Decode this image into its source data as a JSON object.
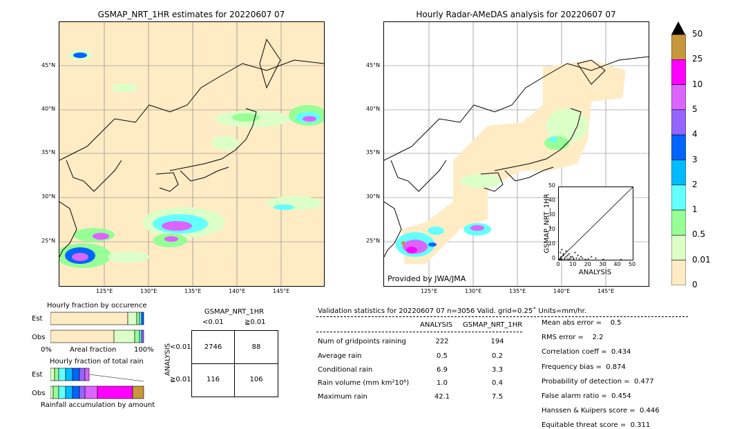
{
  "left_map": {
    "title": "GSMAP_NRT_1HR estimates for 20220607 07",
    "lat_labels": [
      "45°N",
      "40°N",
      "35°N",
      "30°N",
      "25°N"
    ],
    "lon_labels": [
      "125°E",
      "130°E",
      "135°E",
      "140°E",
      "145°E"
    ]
  },
  "right_map": {
    "title": "Hourly Radar-AMeDAS analysis for 20220607 07",
    "lat_labels": [
      "45°N",
      "40°N",
      "35°N",
      "30°N",
      "25°N"
    ],
    "lon_labels": [
      "125°E",
      "130°E",
      "135°E",
      "140°E",
      "145°E"
    ],
    "credit": "Provided by JWA/JMA"
  },
  "colorbar": {
    "labels": [
      "50",
      "25",
      "10",
      "5",
      "4",
      "3",
      "2",
      "1",
      "0.5",
      "0.01",
      "0"
    ],
    "colors": [
      "#c8963c",
      "#ff00ff",
      "#dc64ff",
      "#9664ff",
      "#0064ff",
      "#00bcff",
      "#64ffff",
      "#96ff96",
      "#dcffc8",
      "#ffebc4"
    ]
  },
  "chart_data": [
    {
      "type": "scatter",
      "title": "",
      "xlabel": "ANALYSIS",
      "ylabel": "GSMAP_NRT_1HR",
      "xlim": [
        0,
        50
      ],
      "ylim": [
        0,
        50
      ],
      "xticks": [
        "0",
        "10",
        "20",
        "30",
        "40",
        "50"
      ],
      "yticks": [
        "0",
        "10",
        "20",
        "30",
        "40",
        "50"
      ],
      "x": [
        0.5,
        1,
        1.5,
        2,
        3,
        4,
        5,
        6,
        7,
        8,
        9,
        10,
        12,
        14,
        15,
        18,
        20,
        25,
        30,
        42,
        1,
        2,
        3,
        5,
        6,
        8,
        10,
        1,
        2,
        4,
        7,
        11,
        13,
        16,
        22
      ],
      "y": [
        0.3,
        1,
        2,
        0.5,
        3,
        1,
        2,
        0.5,
        4,
        1,
        2,
        0.3,
        1,
        0.5,
        2,
        0.2,
        0.5,
        1,
        0.2,
        0.1,
        5,
        7,
        4,
        6,
        3,
        2,
        1,
        0.2,
        0.4,
        0.1,
        0.3,
        5,
        3,
        1,
        2
      ]
    },
    {
      "type": "bar",
      "title": "Hourly fraction by occurence",
      "categories": [
        "Est",
        "Obs"
      ],
      "xlabel": "Areal fraction",
      "xticks": [
        "0%",
        "100%"
      ]
    },
    {
      "type": "bar",
      "title": "Hourly fraction of total rain",
      "categories": [
        "Est",
        "Obs"
      ],
      "xlabel": "Rainfall accumulation by amount"
    }
  ],
  "contingency": {
    "title": "GSMAP_NRT_1HR",
    "col_labels": [
      "<0.01",
      "≧0.01"
    ],
    "row_axis": "ANALYSIS",
    "row_labels": [
      "<0.01",
      "≧0.01"
    ],
    "cells": [
      [
        "2746",
        "88"
      ],
      [
        "116",
        "106"
      ]
    ]
  },
  "validation": {
    "header": "Validation statistics for 20220607 07  n=3056 Valid. grid=0.25˚ Units=mm/hr.",
    "col_analysis": "ANALYSIS",
    "col_gsmap": "GSMAP_NRT_1HR",
    "rows": [
      {
        "label": "Num of gridpoints raining",
        "analysis": "222",
        "gsmap": "194"
      },
      {
        "label": "Average rain",
        "analysis": "0.5",
        "gsmap": "0.2"
      },
      {
        "label": "Conditional rain",
        "analysis": "6.9",
        "gsmap": "3.3"
      },
      {
        "label": "Rain volume (mm km²10⁶)",
        "analysis": "1.0",
        "gsmap": "0.4"
      },
      {
        "label": "Maximum rain",
        "analysis": "42.1",
        "gsmap": "7.5"
      }
    ],
    "scores": [
      "Mean abs error =    0.5",
      "RMS error =    2.2",
      "Correlation coeff =  0.434",
      "Frequency bias =  0.874",
      "Probability of detection =  0.477",
      "False alarm ratio =  0.454",
      "Hanssen & Kuipers score =  0.446",
      "Equitable threat score =  0.311"
    ]
  }
}
